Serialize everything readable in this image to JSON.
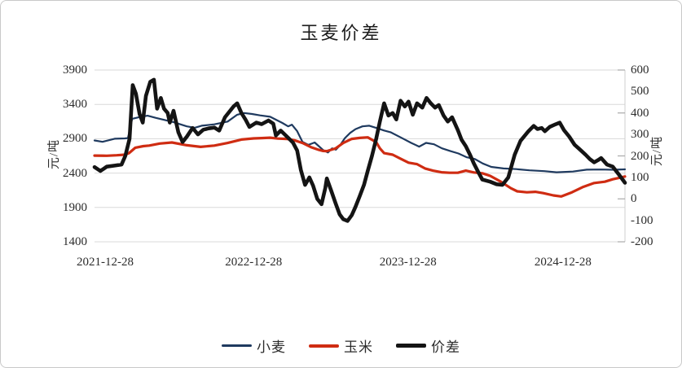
{
  "title": "玉麦价差",
  "legend": [
    {
      "label": "小麦",
      "color": "#1f3a5f",
      "thickness": 3
    },
    {
      "label": "玉米",
      "color": "#cf2c12",
      "thickness": 4
    },
    {
      "label": "价差",
      "color": "#141414",
      "thickness": 5
    }
  ],
  "chart_data": {
    "type": "line",
    "title": "玉麦价差",
    "grid": true,
    "legend_position": "bottom",
    "x_ticks": [
      "2021-12-28",
      "2022-12-28",
      "2023-12-28",
      "2024-12-28"
    ],
    "x_tick_positions": [
      0.02,
      0.3,
      0.591,
      0.883
    ],
    "left_axis": {
      "label": "元/吨",
      "min": 1400,
      "max": 3900,
      "ticks": [
        3900,
        3400,
        2900,
        2400,
        1900,
        1400
      ]
    },
    "right_axis": {
      "label": "元/吨",
      "min": -200,
      "max": 600,
      "ticks": [
        600,
        500,
        400,
        300,
        200,
        100,
        0,
        -100,
        -200
      ],
      "tick_marks": [
        600,
        400,
        200,
        0,
        -200
      ]
    },
    "series": [
      {
        "name": "小麦",
        "axis": "left",
        "color": "#1f3a5f",
        "width": 2.2,
        "points": [
          [
            0.0,
            2875
          ],
          [
            0.015,
            2855
          ],
          [
            0.038,
            2900
          ],
          [
            0.057,
            2905
          ],
          [
            0.063,
            2910
          ],
          [
            0.071,
            3190
          ],
          [
            0.085,
            3215
          ],
          [
            0.1,
            3235
          ],
          [
            0.115,
            3205
          ],
          [
            0.131,
            3175
          ],
          [
            0.149,
            3140
          ],
          [
            0.174,
            3080
          ],
          [
            0.189,
            3060
          ],
          [
            0.202,
            3090
          ],
          [
            0.226,
            3110
          ],
          [
            0.251,
            3150
          ],
          [
            0.269,
            3250
          ],
          [
            0.282,
            3275
          ],
          [
            0.297,
            3260
          ],
          [
            0.312,
            3240
          ],
          [
            0.331,
            3220
          ],
          [
            0.354,
            3130
          ],
          [
            0.365,
            3080
          ],
          [
            0.372,
            3105
          ],
          [
            0.382,
            3010
          ],
          [
            0.392,
            2855
          ],
          [
            0.403,
            2810
          ],
          [
            0.415,
            2845
          ],
          [
            0.431,
            2735
          ],
          [
            0.44,
            2700
          ],
          [
            0.448,
            2760
          ],
          [
            0.455,
            2740
          ],
          [
            0.463,
            2805
          ],
          [
            0.472,
            2910
          ],
          [
            0.482,
            2985
          ],
          [
            0.492,
            3040
          ],
          [
            0.505,
            3080
          ],
          [
            0.518,
            3090
          ],
          [
            0.534,
            3050
          ],
          [
            0.546,
            3020
          ],
          [
            0.558,
            2995
          ],
          [
            0.577,
            2920
          ],
          [
            0.597,
            2840
          ],
          [
            0.612,
            2785
          ],
          [
            0.625,
            2840
          ],
          [
            0.64,
            2820
          ],
          [
            0.655,
            2760
          ],
          [
            0.671,
            2720
          ],
          [
            0.686,
            2685
          ],
          [
            0.702,
            2630
          ],
          [
            0.717,
            2605
          ],
          [
            0.732,
            2540
          ],
          [
            0.748,
            2490
          ],
          [
            0.771,
            2468
          ],
          [
            0.795,
            2458
          ],
          [
            0.82,
            2440
          ],
          [
            0.848,
            2428
          ],
          [
            0.871,
            2412
          ],
          [
            0.902,
            2422
          ],
          [
            0.928,
            2450
          ],
          [
            0.955,
            2452
          ],
          [
            0.978,
            2448
          ],
          [
            1.0,
            2455
          ]
        ]
      },
      {
        "name": "玉米",
        "axis": "left",
        "color": "#cf2c12",
        "width": 3.2,
        "points": [
          [
            0.0,
            2655
          ],
          [
            0.023,
            2652
          ],
          [
            0.042,
            2660
          ],
          [
            0.057,
            2668
          ],
          [
            0.065,
            2690
          ],
          [
            0.077,
            2770
          ],
          [
            0.092,
            2792
          ],
          [
            0.103,
            2800
          ],
          [
            0.123,
            2830
          ],
          [
            0.146,
            2845
          ],
          [
            0.174,
            2805
          ],
          [
            0.2,
            2782
          ],
          [
            0.226,
            2800
          ],
          [
            0.251,
            2838
          ],
          [
            0.277,
            2888
          ],
          [
            0.3,
            2905
          ],
          [
            0.315,
            2910
          ],
          [
            0.331,
            2915
          ],
          [
            0.346,
            2902
          ],
          [
            0.362,
            2898
          ],
          [
            0.377,
            2878
          ],
          [
            0.392,
            2838
          ],
          [
            0.408,
            2778
          ],
          [
            0.423,
            2738
          ],
          [
            0.431,
            2722
          ],
          [
            0.438,
            2720
          ],
          [
            0.454,
            2758
          ],
          [
            0.469,
            2838
          ],
          [
            0.485,
            2898
          ],
          [
            0.5,
            2912
          ],
          [
            0.515,
            2920
          ],
          [
            0.531,
            2850
          ],
          [
            0.538,
            2760
          ],
          [
            0.546,
            2690
          ],
          [
            0.562,
            2668
          ],
          [
            0.577,
            2610
          ],
          [
            0.592,
            2552
          ],
          [
            0.608,
            2530
          ],
          [
            0.623,
            2468
          ],
          [
            0.638,
            2435
          ],
          [
            0.654,
            2412
          ],
          [
            0.669,
            2405
          ],
          [
            0.685,
            2405
          ],
          [
            0.7,
            2435
          ],
          [
            0.715,
            2410
          ],
          [
            0.731,
            2398
          ],
          [
            0.746,
            2360
          ],
          [
            0.766,
            2275
          ],
          [
            0.785,
            2180
          ],
          [
            0.797,
            2135
          ],
          [
            0.815,
            2120
          ],
          [
            0.831,
            2128
          ],
          [
            0.846,
            2108
          ],
          [
            0.865,
            2075
          ],
          [
            0.88,
            2060
          ],
          [
            0.9,
            2120
          ],
          [
            0.92,
            2195
          ],
          [
            0.942,
            2255
          ],
          [
            0.962,
            2275
          ],
          [
            0.977,
            2310
          ],
          [
            1.0,
            2350
          ]
        ]
      },
      {
        "name": "价差",
        "axis": "right",
        "color": "#141414",
        "width": 4.6,
        "points": [
          [
            0.0,
            148
          ],
          [
            0.011,
            130
          ],
          [
            0.023,
            150
          ],
          [
            0.038,
            155
          ],
          [
            0.051,
            160
          ],
          [
            0.058,
            200
          ],
          [
            0.066,
            280
          ],
          [
            0.072,
            530
          ],
          [
            0.078,
            490
          ],
          [
            0.085,
            395
          ],
          [
            0.091,
            355
          ],
          [
            0.097,
            480
          ],
          [
            0.105,
            545
          ],
          [
            0.112,
            555
          ],
          [
            0.118,
            420
          ],
          [
            0.125,
            470
          ],
          [
            0.131,
            420
          ],
          [
            0.138,
            400
          ],
          [
            0.142,
            355
          ],
          [
            0.149,
            410
          ],
          [
            0.158,
            310
          ],
          [
            0.166,
            265
          ],
          [
            0.174,
            290
          ],
          [
            0.185,
            330
          ],
          [
            0.195,
            300
          ],
          [
            0.205,
            322
          ],
          [
            0.215,
            328
          ],
          [
            0.226,
            332
          ],
          [
            0.235,
            318
          ],
          [
            0.246,
            380
          ],
          [
            0.262,
            430
          ],
          [
            0.269,
            445
          ],
          [
            0.277,
            400
          ],
          [
            0.285,
            368
          ],
          [
            0.292,
            335
          ],
          [
            0.305,
            355
          ],
          [
            0.315,
            348
          ],
          [
            0.328,
            365
          ],
          [
            0.337,
            350
          ],
          [
            0.342,
            295
          ],
          [
            0.351,
            318
          ],
          [
            0.366,
            282
          ],
          [
            0.374,
            262
          ],
          [
            0.382,
            225
          ],
          [
            0.389,
            135
          ],
          [
            0.397,
            65
          ],
          [
            0.405,
            100
          ],
          [
            0.412,
            62
          ],
          [
            0.42,
            0
          ],
          [
            0.428,
            -25
          ],
          [
            0.435,
            50
          ],
          [
            0.438,
            95
          ],
          [
            0.446,
            40
          ],
          [
            0.454,
            -18
          ],
          [
            0.462,
            -72
          ],
          [
            0.469,
            -95
          ],
          [
            0.477,
            -103
          ],
          [
            0.485,
            -76
          ],
          [
            0.492,
            -37
          ],
          [
            0.5,
            13
          ],
          [
            0.508,
            65
          ],
          [
            0.515,
            130
          ],
          [
            0.523,
            200
          ],
          [
            0.531,
            280
          ],
          [
            0.538,
            360
          ],
          [
            0.546,
            445
          ],
          [
            0.554,
            388
          ],
          [
            0.562,
            400
          ],
          [
            0.569,
            370
          ],
          [
            0.577,
            457
          ],
          [
            0.585,
            430
          ],
          [
            0.592,
            453
          ],
          [
            0.6,
            392
          ],
          [
            0.608,
            445
          ],
          [
            0.618,
            425
          ],
          [
            0.626,
            470
          ],
          [
            0.634,
            445
          ],
          [
            0.642,
            425
          ],
          [
            0.649,
            437
          ],
          [
            0.658,
            388
          ],
          [
            0.666,
            360
          ],
          [
            0.674,
            380
          ],
          [
            0.685,
            320
          ],
          [
            0.692,
            275
          ],
          [
            0.7,
            245
          ],
          [
            0.708,
            205
          ],
          [
            0.715,
            165
          ],
          [
            0.723,
            127
          ],
          [
            0.731,
            90
          ],
          [
            0.746,
            80
          ],
          [
            0.758,
            68
          ],
          [
            0.769,
            65
          ],
          [
            0.78,
            100
          ],
          [
            0.792,
            205
          ],
          [
            0.803,
            270
          ],
          [
            0.818,
            315
          ],
          [
            0.828,
            340
          ],
          [
            0.835,
            325
          ],
          [
            0.843,
            330
          ],
          [
            0.849,
            315
          ],
          [
            0.858,
            335
          ],
          [
            0.869,
            347
          ],
          [
            0.877,
            355
          ],
          [
            0.885,
            320
          ],
          [
            0.895,
            290
          ],
          [
            0.905,
            252
          ],
          [
            0.915,
            230
          ],
          [
            0.926,
            205
          ],
          [
            0.934,
            185
          ],
          [
            0.942,
            170
          ],
          [
            0.949,
            180
          ],
          [
            0.955,
            190
          ],
          [
            0.966,
            160
          ],
          [
            0.977,
            150
          ],
          [
            0.988,
            115
          ],
          [
            1.0,
            75
          ]
        ]
      }
    ]
  }
}
